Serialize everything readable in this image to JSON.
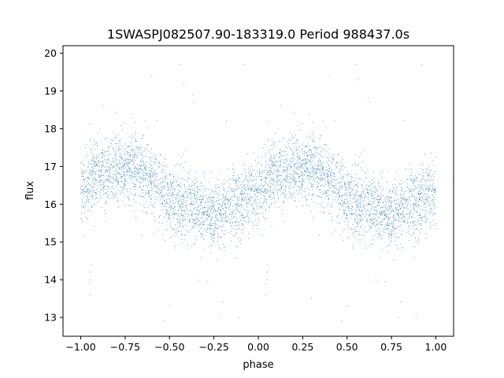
{
  "chart_data": {
    "type": "scatter",
    "title": "1SWASPJ082507.90-183319.0 Period 988437.0s",
    "xlabel": "phase",
    "ylabel": "flux",
    "xlim": [
      -1.1,
      1.1
    ],
    "ylim": [
      12.5,
      20.2
    ],
    "xticks": [
      -1.0,
      -0.75,
      -0.5,
      -0.25,
      0.0,
      0.25,
      0.5,
      0.75,
      1.0
    ],
    "xtick_labels": [
      "−1.00",
      "−0.75",
      "−0.50",
      "−0.25",
      "0.00",
      "0.25",
      "0.50",
      "0.75",
      "1.00"
    ],
    "yticks": [
      13,
      14,
      15,
      16,
      17,
      18,
      19,
      20
    ],
    "ytick_labels": [
      "13",
      "14",
      "15",
      "16",
      "17",
      "18",
      "19",
      "20"
    ],
    "grid": false,
    "legend": "none",
    "marker_color": "#1f77b4",
    "series": [
      {
        "description": "phase-folded light curve shown twice (phase −1 to 1); dense band, approximate profile",
        "profile_x": [
          0.0,
          0.05,
          0.1,
          0.15,
          0.2,
          0.25,
          0.3,
          0.35,
          0.4,
          0.45,
          0.5,
          0.55,
          0.6,
          0.65,
          0.7,
          0.75,
          0.8,
          0.85,
          0.9,
          0.95,
          1.0
        ],
        "profile_y": [
          16.3,
          16.6,
          16.8,
          16.9,
          17.0,
          16.9,
          17.0,
          16.9,
          16.7,
          16.4,
          16.1,
          16.0,
          16.0,
          15.9,
          15.8,
          15.7,
          15.8,
          15.9,
          16.1,
          16.3,
          16.3
        ],
        "scatter_sd": 0.45,
        "outlier_points": [
          [
            -0.95,
            13.6
          ],
          [
            -0.95,
            13.9
          ],
          [
            -0.95,
            14.2
          ],
          [
            -0.94,
            14.4
          ],
          [
            -0.95,
            14.0
          ],
          [
            0.04,
            13.6
          ],
          [
            0.04,
            13.9
          ],
          [
            0.05,
            14.2
          ],
          [
            0.05,
            14.4
          ],
          [
            0.05,
            14.0
          ],
          [
            -0.44,
            19.7
          ],
          [
            -0.42,
            19.2
          ],
          [
            -0.37,
            18.9
          ],
          [
            -0.36,
            18.7
          ],
          [
            -0.6,
            19.4
          ],
          [
            -0.2,
            13.4
          ],
          [
            -0.21,
            13.0
          ],
          [
            -0.5,
            13.3
          ],
          [
            0.3,
            13.5
          ],
          [
            0.55,
            19.7
          ],
          [
            0.56,
            19.3
          ],
          [
            0.62,
            18.8
          ],
          [
            0.63,
            18.7
          ],
          [
            0.4,
            19.4
          ],
          [
            0.8,
            13.4
          ],
          [
            0.79,
            13.0
          ],
          [
            0.5,
            13.3
          ],
          [
            -0.87,
            18.6
          ],
          [
            0.13,
            18.6
          ],
          [
            -0.3,
            14.8
          ],
          [
            0.7,
            14.8
          ],
          [
            0.92,
            19.7
          ],
          [
            -0.08,
            19.7
          ],
          [
            -0.18,
            18.2
          ],
          [
            0.82,
            18.2
          ],
          [
            0.47,
            12.9
          ],
          [
            -0.53,
            12.9
          ],
          [
            0.89,
            13.0
          ],
          [
            -0.11,
            13.0
          ]
        ]
      }
    ]
  }
}
